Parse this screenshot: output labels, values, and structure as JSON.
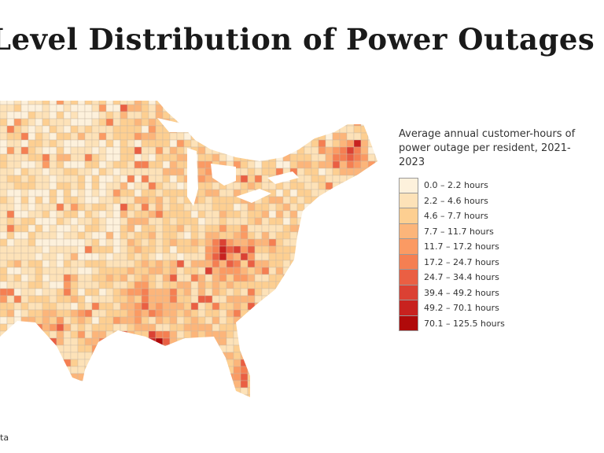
{
  "title": "Level Distribution of Power Outages",
  "legend": {
    "title": "Average annual customer-hours of power outage per resident, 2021-2023",
    "items": [
      {
        "label": "0.0 – 2.2 hours",
        "color": "#fdf1dc"
      },
      {
        "label": "2.2 – 4.6 hours",
        "color": "#fde2b8"
      },
      {
        "label": "4.6 – 7.7 hours",
        "color": "#fdcf91"
      },
      {
        "label": "7.7 – 11.7 hours",
        "color": "#fcb57a"
      },
      {
        "label": "11.7 – 17.2 hours",
        "color": "#fb9a63"
      },
      {
        "label": "17.2 – 24.7 hours",
        "color": "#f57f52"
      },
      {
        "label": "24.7 – 34.4 hours",
        "color": "#ea5f43"
      },
      {
        "label": "39.4 – 49.2 hours",
        "color": "#db4133"
      },
      {
        "label": "49.2 – 70.1 hours",
        "color": "#c8221f"
      },
      {
        "label": "70.1 – 125.5 hours",
        "color": "#b00a0a"
      }
    ]
  },
  "footnote": "ta"
}
